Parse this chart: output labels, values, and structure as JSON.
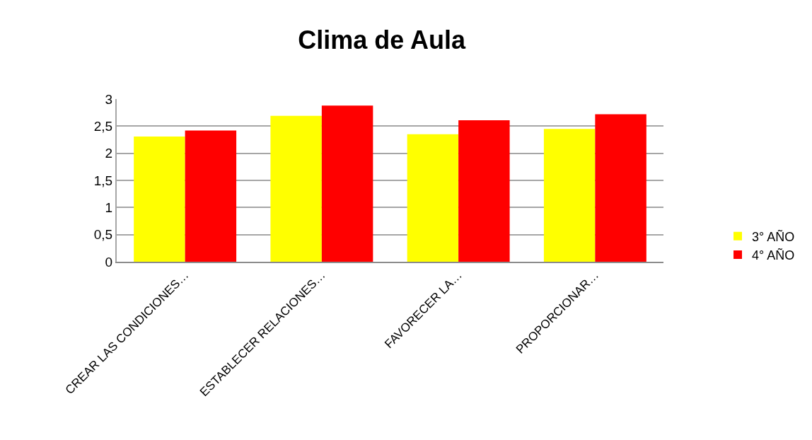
{
  "chart_data": {
    "type": "bar",
    "title": "Clima de Aula",
    "categories": [
      "CREAR LAS CONDICIONES…",
      "ESTABLECER RELACIONES…",
      "FAVORECER LA…",
      "PROPORCIONAR…"
    ],
    "series": [
      {
        "name": "3° AÑO",
        "color": "#ffff00",
        "values": [
          2.31,
          2.69,
          2.35,
          2.45
        ]
      },
      {
        "name": "4° AÑO",
        "color": "#ff0000",
        "values": [
          2.42,
          2.88,
          2.61,
          2.72
        ]
      }
    ],
    "ylim": [
      0,
      3
    ],
    "yticks": [
      0,
      {
        "value": 0.5,
        "label": "0,5"
      },
      1,
      {
        "value": 1.5,
        "label": "1,5"
      },
      2,
      {
        "value": 2.5,
        "label": "2,5"
      },
      3
    ],
    "grid": "y",
    "legend": "right"
  }
}
